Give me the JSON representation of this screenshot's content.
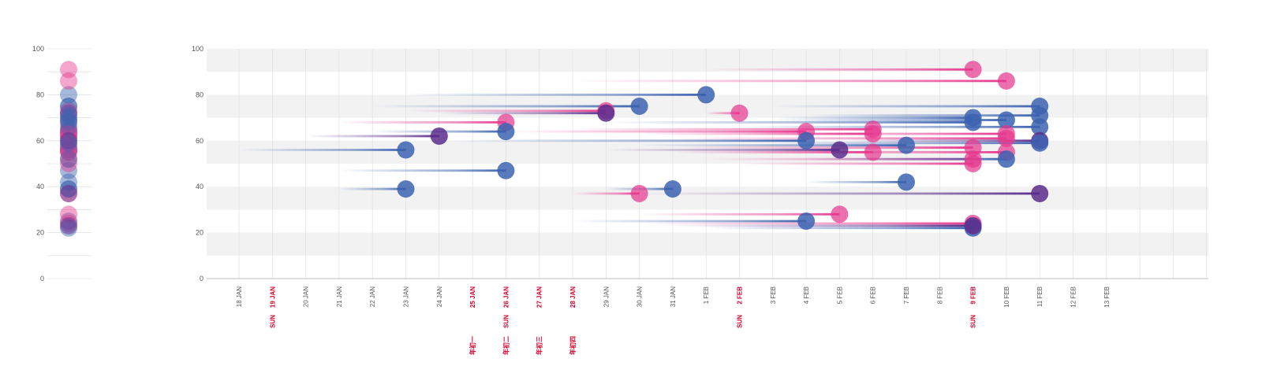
{
  "chart_data": {
    "type": "scatter",
    "title": "",
    "xlabel": "",
    "ylabel": "",
    "ylim": [
      0,
      100
    ],
    "y_ticks": [
      "0",
      "20",
      "40",
      "60",
      "80",
      "100"
    ],
    "grid": "vertical lines per day, alternating horizontal bands",
    "x_dates": [
      {
        "label": "18 JAN",
        "red": false,
        "sub": ""
      },
      {
        "label": "19 JAN",
        "red": true,
        "sub": "SUN"
      },
      {
        "label": "20 JAN",
        "red": false,
        "sub": ""
      },
      {
        "label": "21 JAN",
        "red": false,
        "sub": ""
      },
      {
        "label": "22 JAN",
        "red": false,
        "sub": ""
      },
      {
        "label": "23 JAN",
        "red": false,
        "sub": ""
      },
      {
        "label": "24 JAN",
        "red": false,
        "sub": ""
      },
      {
        "label": "25 JAN",
        "red": true,
        "sub": "",
        "sub2": "年初一"
      },
      {
        "label": "26 JAN",
        "red": true,
        "sub": "SUN",
        "sub2": "年初二"
      },
      {
        "label": "27 JAN",
        "red": true,
        "sub": "",
        "sub2": "年初三"
      },
      {
        "label": "28 JAN",
        "red": true,
        "sub": "",
        "sub2": "年初四"
      },
      {
        "label": "29 JAN",
        "red": false,
        "sub": ""
      },
      {
        "label": "30 JAN",
        "red": false,
        "sub": ""
      },
      {
        "label": "31 JAN",
        "red": false,
        "sub": ""
      },
      {
        "label": "1 FEB",
        "red": false,
        "sub": ""
      },
      {
        "label": "2 FEB",
        "red": true,
        "sub": "SUN"
      },
      {
        "label": "3 FEB",
        "red": false,
        "sub": ""
      },
      {
        "label": "4 FEB",
        "red": false,
        "sub": ""
      },
      {
        "label": "5 FEB",
        "red": false,
        "sub": ""
      },
      {
        "label": "6 FEB",
        "red": false,
        "sub": ""
      },
      {
        "label": "7 FEB",
        "red": false,
        "sub": ""
      },
      {
        "label": "8 FEB",
        "red": false,
        "sub": ""
      },
      {
        "label": "9 FEB",
        "red": true,
        "sub": "SUN"
      },
      {
        "label": "10 FEB",
        "red": false,
        "sub": ""
      },
      {
        "label": "11 FEB",
        "red": false,
        "sub": ""
      },
      {
        "label": "12 FEB",
        "red": false,
        "sub": ""
      },
      {
        "label": "13 FEB",
        "red": false,
        "sub": ""
      }
    ],
    "colors": {
      "blue": "#3c63b0",
      "pink": "#e6398f",
      "purple": "#5a2d8c",
      "band": "#f2f2f2",
      "grid": "#dcdcdc",
      "red_label": "#d8002a"
    },
    "points": [
      {
        "start": "18 JAN",
        "end": "23 JAN",
        "y": 56,
        "color": "blue"
      },
      {
        "start": "21 JAN",
        "end": "23 JAN",
        "y": 39,
        "color": "blue"
      },
      {
        "start": "21 JAN",
        "end": "26 JAN",
        "y": 47,
        "color": "blue"
      },
      {
        "start": "20 JAN",
        "end": "24 JAN",
        "y": 62,
        "color": "purple"
      },
      {
        "start": "21 JAN",
        "end": "26 JAN",
        "y": 68,
        "color": "pink"
      },
      {
        "start": "22 JAN",
        "end": "26 JAN",
        "y": 64,
        "color": "blue"
      },
      {
        "start": "22 JAN",
        "end": "30 JAN",
        "y": 75,
        "color": "blue"
      },
      {
        "start": "23 JAN",
        "end": "29 JAN",
        "y": 73,
        "color": "pink"
      },
      {
        "start": "24 JAN",
        "end": "29 JAN",
        "y": 72,
        "color": "purple"
      },
      {
        "start": "23 JAN",
        "end": "1 FEB",
        "y": 80,
        "color": "blue"
      },
      {
        "start": "28 JAN",
        "end": "30 JAN",
        "y": 37,
        "color": "pink"
      },
      {
        "start": "29 JAN",
        "end": "31 JAN",
        "y": 39,
        "color": "blue"
      },
      {
        "start": "1 FEB",
        "end": "2 FEB",
        "y": 72,
        "color": "pink"
      },
      {
        "start": "26 JAN",
        "end": "4 FEB",
        "y": 64,
        "color": "pink"
      },
      {
        "start": "24 JAN",
        "end": "4 FEB",
        "y": 60,
        "color": "blue"
      },
      {
        "start": "28 JAN",
        "end": "4 FEB",
        "y": 25,
        "color": "blue"
      },
      {
        "start": "30 JAN",
        "end": "5 FEB",
        "y": 28,
        "color": "pink"
      },
      {
        "start": "29 JAN",
        "end": "5 FEB",
        "y": 56,
        "color": "purple"
      },
      {
        "start": "28 JAN",
        "end": "6 FEB",
        "y": 65,
        "color": "pink"
      },
      {
        "start": "30 JAN",
        "end": "6 FEB",
        "y": 63,
        "color": "pink"
      },
      {
        "start": "31 JAN",
        "end": "6 FEB",
        "y": 55,
        "color": "pink"
      },
      {
        "start": "30 JAN",
        "end": "7 FEB",
        "y": 58,
        "color": "blue"
      },
      {
        "start": "4 FEB",
        "end": "7 FEB",
        "y": 42,
        "color": "blue"
      },
      {
        "start": "2 FEB",
        "end": "9 FEB",
        "y": 50,
        "color": "pink"
      },
      {
        "start": "1 FEB",
        "end": "9 FEB",
        "y": 52,
        "color": "pink"
      },
      {
        "start": "31 JAN",
        "end": "9 FEB",
        "y": 57,
        "color": "pink"
      },
      {
        "start": "29 JAN",
        "end": "9 FEB",
        "y": 68,
        "color": "blue"
      },
      {
        "start": "3 FEB",
        "end": "9 FEB",
        "y": 70,
        "color": "blue"
      },
      {
        "start": "30 JAN",
        "end": "9 FEB",
        "y": 24,
        "color": "pink"
      },
      {
        "start": "1 FEB",
        "end": "9 FEB",
        "y": 22,
        "color": "blue"
      },
      {
        "start": "31 JAN",
        "end": "9 FEB",
        "y": 23,
        "color": "purple"
      },
      {
        "start": "1 FEB",
        "end": "9 FEB",
        "y": 91,
        "color": "pink"
      },
      {
        "start": "28 JAN",
        "end": "10 FEB",
        "y": 86,
        "color": "pink"
      },
      {
        "start": "3 FEB",
        "end": "10 FEB",
        "y": 69,
        "color": "blue"
      },
      {
        "start": "2 FEB",
        "end": "10 FEB",
        "y": 63,
        "color": "pink"
      },
      {
        "start": "31 JAN",
        "end": "10 FEB",
        "y": 61,
        "color": "pink"
      },
      {
        "start": "2 FEB",
        "end": "10 FEB",
        "y": 55,
        "color": "pink"
      },
      {
        "start": "4 FEB",
        "end": "10 FEB",
        "y": 52,
        "color": "blue"
      },
      {
        "start": "3 FEB",
        "end": "11 FEB",
        "y": 75,
        "color": "blue"
      },
      {
        "start": "4 FEB",
        "end": "11 FEB",
        "y": 71,
        "color": "blue"
      },
      {
        "start": "2 FEB",
        "end": "11 FEB",
        "y": 66,
        "color": "blue"
      },
      {
        "start": "5 FEB",
        "end": "11 FEB",
        "y": 60,
        "color": "purple"
      },
      {
        "start": "3 FEB",
        "end": "11 FEB",
        "y": 59,
        "color": "blue"
      },
      {
        "start": "30 JAN",
        "end": "11 FEB",
        "y": 37,
        "color": "purple"
      }
    ]
  }
}
